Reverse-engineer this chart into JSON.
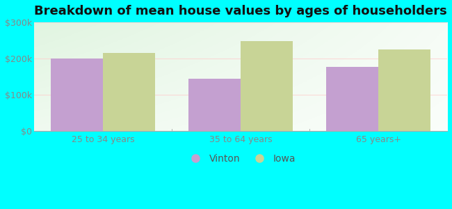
{
  "title": "Breakdown of mean house values by ages of householders",
  "categories": [
    "25 to 34 years",
    "35 to 64 years",
    "65 years+"
  ],
  "vinton_values": [
    200000,
    145000,
    178000
  ],
  "iowa_values": [
    215000,
    248000,
    225000
  ],
  "vinton_color": "#c4a0d0",
  "iowa_color": "#c8d496",
  "ylim": [
    0,
    300000
  ],
  "yticks": [
    0,
    100000,
    200000,
    300000
  ],
  "ytick_labels": [
    "$0",
    "$100k",
    "$200k",
    "$300k"
  ],
  "legend_labels": [
    "Vinton",
    "Iowa"
  ],
  "outer_bg": "#00ffff",
  "bar_width": 0.38,
  "title_fontsize": 13,
  "tick_fontsize": 9,
  "legend_fontsize": 10
}
